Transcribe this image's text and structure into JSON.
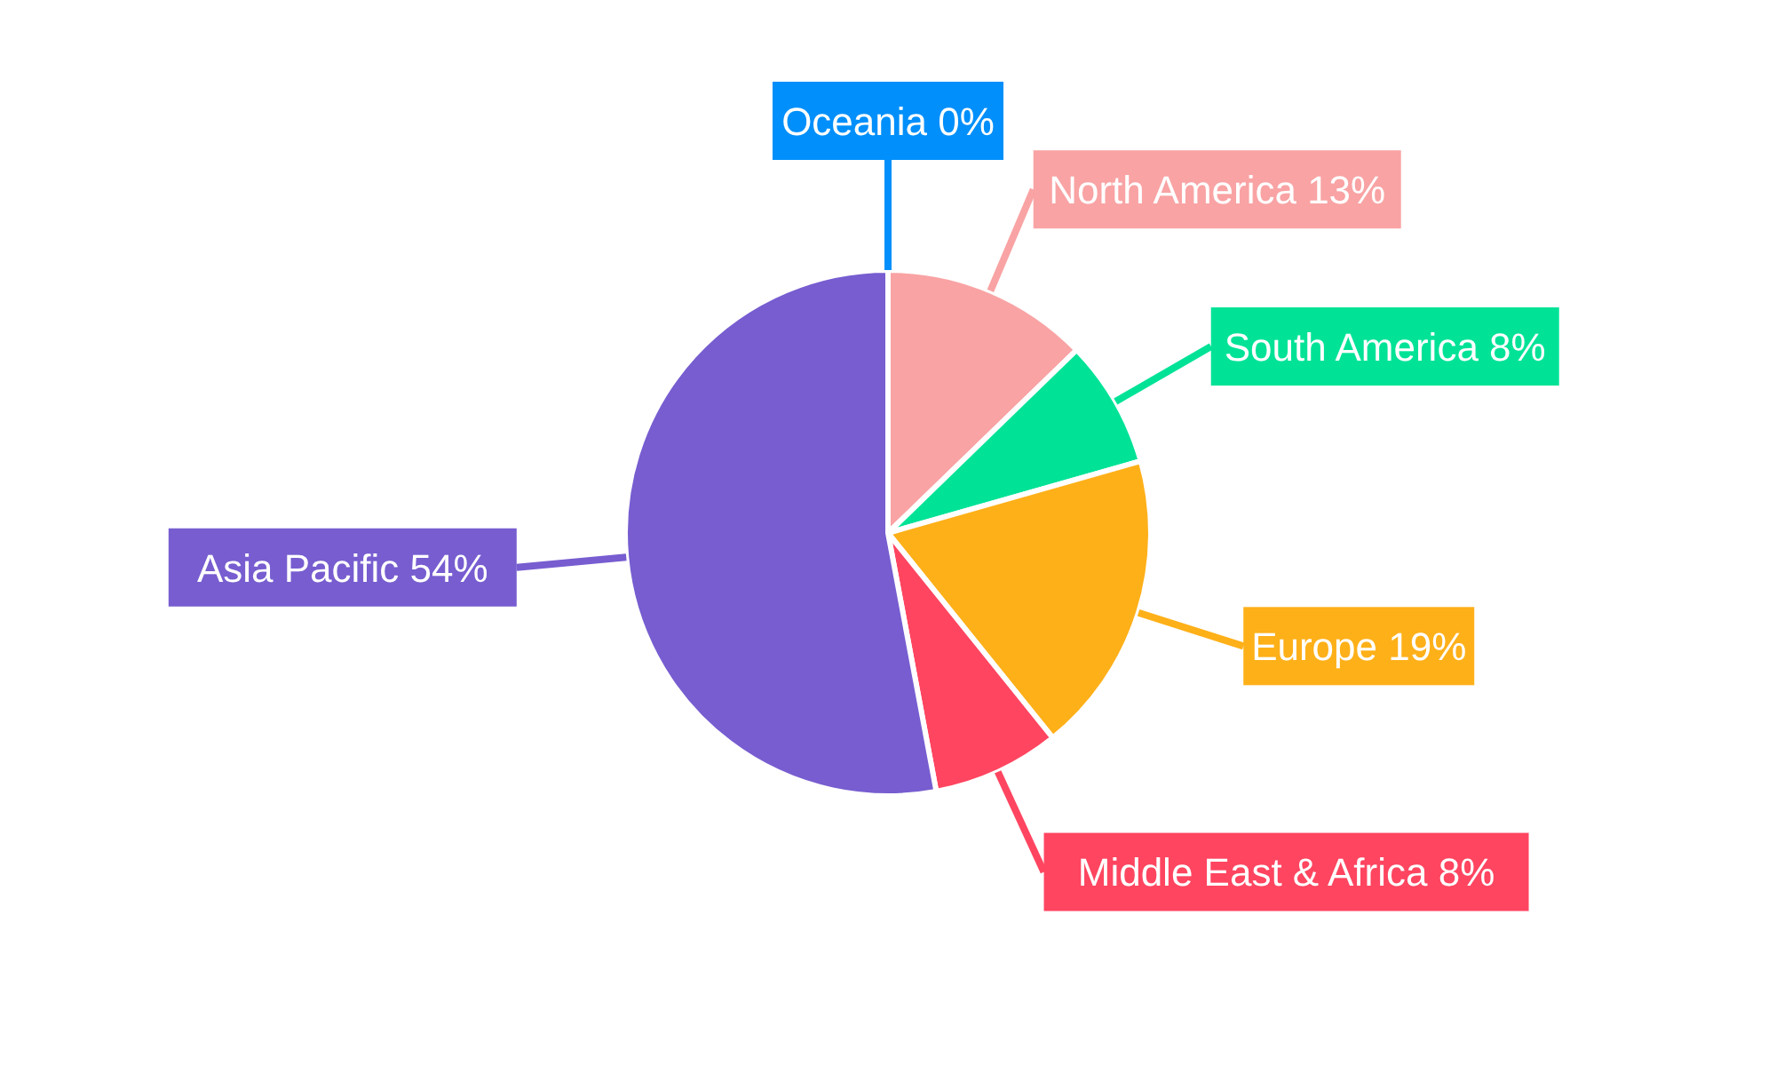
{
  "chart_data": {
    "type": "pie",
    "categories": [
      "Oceania",
      "North America",
      "South America",
      "Europe",
      "Middle East & Africa",
      "Asia Pacific"
    ],
    "values": [
      0,
      13,
      8,
      19,
      8,
      54
    ],
    "value_labels": [
      "0%",
      "13%",
      "8%",
      "19%",
      "8%",
      "54%"
    ],
    "colors": [
      "#008ffb",
      "#f9a3a4",
      "#00e396",
      "#feb019",
      "#ff4560",
      "#775dd0"
    ]
  }
}
